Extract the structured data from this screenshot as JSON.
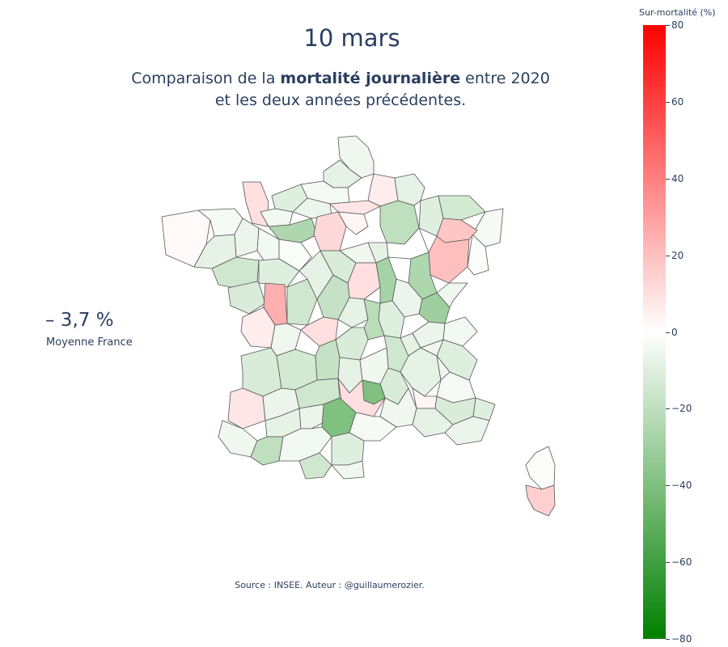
{
  "title": "10 mars",
  "subtitle": {
    "prefix": "Comparaison de la ",
    "bold": "mortalité journalière",
    "suffix": " entre 2020",
    "line2": "et les deux années précédentes."
  },
  "average": {
    "value": "– 3,7 %",
    "label": "Moyenne France"
  },
  "source": "Source : INSEE. Auteur : @guillaumerozier.",
  "colorbar": {
    "title": "Sur-mortalité (%)",
    "min": -80,
    "max": 80,
    "ticks": [
      "80",
      "60",
      "40",
      "20",
      "0",
      "−20",
      "−40",
      "−60",
      "−80"
    ],
    "colors": {
      "high": "#ff0000",
      "mid": "#ffffff",
      "low": "#008000"
    }
  },
  "map_data": {
    "regions": [
      {
        "id": "nord",
        "value": -5
      },
      {
        "id": "pas-de-calais",
        "value": -8
      },
      {
        "id": "somme",
        "value": -3
      },
      {
        "id": "aisne",
        "value": 6
      },
      {
        "id": "oise",
        "value": 8
      },
      {
        "id": "seine-maritime",
        "value": -10
      },
      {
        "id": "manche",
        "value": 10
      },
      {
        "id": "calvados",
        "value": -4
      },
      {
        "id": "orne",
        "value": -25
      },
      {
        "id": "eure",
        "value": -6
      },
      {
        "id": "paris-area",
        "value": 12
      },
      {
        "id": "val-doise",
        "value": 3
      },
      {
        "id": "marne",
        "value": -20
      },
      {
        "id": "ardennes",
        "value": -8
      },
      {
        "id": "meuse",
        "value": -10
      },
      {
        "id": "moselle",
        "value": -14
      },
      {
        "id": "bas-rhin",
        "value": -3
      },
      {
        "id": "meurthe-et-moselle",
        "value": 18
      },
      {
        "id": "vosges",
        "value": 20
      },
      {
        "id": "haut-rhin",
        "value": -2
      },
      {
        "id": "aube",
        "value": 0
      },
      {
        "id": "haute-marne",
        "value": -25
      },
      {
        "id": "finistere",
        "value": 2
      },
      {
        "id": "cotes-darmor",
        "value": -3
      },
      {
        "id": "ille-et-vilaine",
        "value": -6
      },
      {
        "id": "morbihan",
        "value": -8
      },
      {
        "id": "loire-atlantique",
        "value": -15
      },
      {
        "id": "mayenne",
        "value": -4
      },
      {
        "id": "sarthe",
        "value": -2
      },
      {
        "id": "maine-et-loire",
        "value": -10
      },
      {
        "id": "vendee",
        "value": -12
      },
      {
        "id": "deux-sevres",
        "value": 25
      },
      {
        "id": "vienne",
        "value": -15
      },
      {
        "id": "indre-et-loire",
        "value": -8
      },
      {
        "id": "loir-et-cher",
        "value": -12
      },
      {
        "id": "loiret",
        "value": -5
      },
      {
        "id": "cher",
        "value": 10
      },
      {
        "id": "indre",
        "value": -18
      },
      {
        "id": "nievre",
        "value": -28
      },
      {
        "id": "yonne",
        "value": -8
      },
      {
        "id": "cote-dor",
        "value": -6
      },
      {
        "id": "saone-et-loire",
        "value": -10
      },
      {
        "id": "jura",
        "value": -30
      },
      {
        "id": "doubs",
        "value": -5
      },
      {
        "id": "charente-maritime",
        "value": 6
      },
      {
        "id": "charente",
        "value": -5
      },
      {
        "id": "haute-vienne",
        "value": 10
      },
      {
        "id": "creuse",
        "value": -8
      },
      {
        "id": "allier",
        "value": -22
      },
      {
        "id": "puy-de-dome",
        "value": -12
      },
      {
        "id": "loire",
        "value": -15
      },
      {
        "id": "rhone",
        "value": -8
      },
      {
        "id": "ain",
        "value": -6
      },
      {
        "id": "haute-savoie",
        "value": -4
      },
      {
        "id": "savoie",
        "value": -10
      },
      {
        "id": "gironde",
        "value": -12
      },
      {
        "id": "dordogne",
        "value": -14
      },
      {
        "id": "correze",
        "value": -18
      },
      {
        "id": "cantal",
        "value": -8
      },
      {
        "id": "haute-loire",
        "value": -5
      },
      {
        "id": "ardeche",
        "value": -12
      },
      {
        "id": "drome",
        "value": -8
      },
      {
        "id": "isere",
        "value": -5
      },
      {
        "id": "hautes-alpes",
        "value": -3
      },
      {
        "id": "landes",
        "value": 8
      },
      {
        "id": "lot-et-garonne",
        "value": -6
      },
      {
        "id": "lot",
        "value": -15
      },
      {
        "id": "aveyron",
        "value": 10
      },
      {
        "id": "lozere",
        "value": -40
      },
      {
        "id": "gard",
        "value": -5
      },
      {
        "id": "vaucluse",
        "value": 3
      },
      {
        "id": "alpes-de-haute-provence",
        "value": -12
      },
      {
        "id": "alpes-maritimes",
        "value": -10
      },
      {
        "id": "var",
        "value": -6
      },
      {
        "id": "bouches-du-rhone",
        "value": -8
      },
      {
        "id": "pyrenees-atlantiques",
        "value": -5
      },
      {
        "id": "gers",
        "value": -8
      },
      {
        "id": "hautes-pyrenees",
        "value": -20
      },
      {
        "id": "tarn-et-garonne",
        "value": -6
      },
      {
        "id": "tarn",
        "value": -40
      },
      {
        "id": "haute-garonne",
        "value": -4
      },
      {
        "id": "ariege",
        "value": -15
      },
      {
        "id": "aude",
        "value": -10
      },
      {
        "id": "herault",
        "value": -3
      },
      {
        "id": "pyrenees-orientales",
        "value": -5
      },
      {
        "id": "haute-corse",
        "value": -2
      },
      {
        "id": "corse-du-sud",
        "value": 15
      }
    ]
  }
}
